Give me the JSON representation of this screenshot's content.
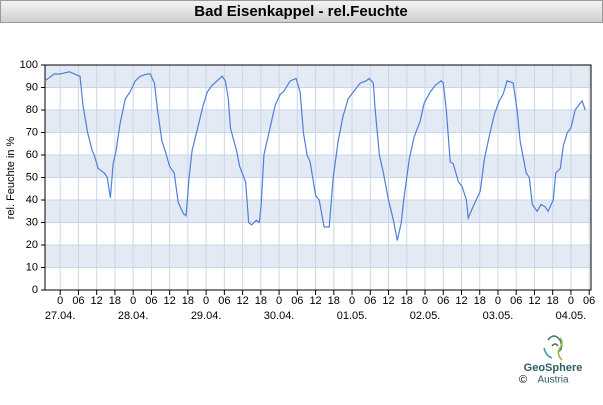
{
  "chart_data": {
    "type": "line",
    "title": "Bad Eisenkappel - rel.Feuchte",
    "ylabel": "rel. Feuchte in %",
    "x": [
      -5,
      -2,
      0,
      3,
      6.5,
      7.5,
      9,
      10.5,
      11.2,
      12.5,
      14.5,
      15.5,
      16.5,
      17.4,
      18.4,
      19.7,
      21.4,
      23,
      24.7,
      26.3,
      28.6,
      29.6,
      31,
      32,
      33.5,
      34.5,
      36,
      37.5,
      38.8,
      40.5,
      41.4,
      42.4,
      43.4,
      45.4,
      47,
      48.4,
      50,
      51.6,
      53.3,
      54.3,
      55.3,
      56,
      58,
      59,
      61,
      62,
      63,
      64.5,
      65.5,
      66.1,
      67,
      69,
      70.7,
      72.4,
      73.4,
      75.7,
      77.6,
      78.9,
      80,
      81.2,
      82.2,
      84,
      85.2,
      86.8,
      88.5,
      89.8,
      91.4,
      93,
      94.7,
      96.4,
      98.7,
      100.7,
      101.6,
      103,
      103.6,
      105,
      106.3,
      108,
      109.6,
      110.9,
      112.2,
      113,
      114.8,
      116.4,
      118.4,
      119.7,
      121.7,
      123.4,
      125.3,
      126,
      127,
      128.3,
      129.3,
      131,
      132.2,
      133.6,
      134.2,
      135.5,
      136.8,
      138.2,
      139.5,
      141.4,
      142.8,
      144.4,
      145.7,
      147,
      149,
      150.3,
      151.3,
      153.3,
      154.3,
      155.3,
      156.9,
      158.2,
      159.5,
      160.5,
      162.2,
      163,
      164.5,
      165.5,
      166.8,
      168,
      169.4,
      171,
      171.7,
      172.7
    ],
    "values": [
      93,
      96,
      96,
      97,
      95,
      82,
      70,
      62,
      60,
      54,
      52,
      50,
      41,
      56,
      62,
      74,
      85,
      88,
      93,
      95,
      96,
      96,
      92,
      80,
      66,
      62,
      55,
      52,
      39,
      34,
      33,
      50,
      62,
      73,
      82,
      88,
      91,
      93,
      95,
      93,
      85,
      72,
      62,
      55,
      48,
      30,
      29,
      31,
      30,
      38,
      60,
      72,
      82,
      87,
      88,
      93,
      94,
      88,
      70,
      60,
      57,
      42,
      40,
      28,
      28,
      50,
      66,
      77,
      85,
      88,
      92,
      93,
      94,
      92,
      80,
      60,
      52,
      40,
      31,
      22,
      30,
      40,
      58,
      68,
      75,
      83,
      88,
      91,
      93,
      92,
      80,
      57,
      56,
      48,
      46,
      40,
      32,
      36,
      40,
      44,
      58,
      70,
      78,
      84,
      87,
      93,
      92,
      80,
      66,
      52,
      50,
      38,
      35,
      38,
      37,
      35,
      40,
      52,
      54,
      64,
      70,
      72,
      80,
      83,
      84,
      80
    ],
    "color": "#4f7fd6",
    "xlim": [
      -5,
      174.6
    ],
    "ylim": [
      0,
      100
    ],
    "yticks": [
      0,
      10,
      20,
      30,
      40,
      50,
      60,
      70,
      80,
      90,
      100
    ],
    "xticks": [
      {
        "value": 0,
        "label": "0"
      },
      {
        "value": 6,
        "label": "06"
      },
      {
        "value": 12,
        "label": "12"
      },
      {
        "value": 18,
        "label": "18"
      },
      {
        "value": 24,
        "label": "0"
      },
      {
        "value": 30,
        "label": "06"
      },
      {
        "value": 36,
        "label": "12"
      },
      {
        "value": 42,
        "label": "18"
      },
      {
        "value": 48,
        "label": "0"
      },
      {
        "value": 54,
        "label": "06"
      },
      {
        "value": 60,
        "label": "12"
      },
      {
        "value": 66,
        "label": "18"
      },
      {
        "value": 72,
        "label": "0"
      },
      {
        "value": 78,
        "label": "06"
      },
      {
        "value": 84,
        "label": "12"
      },
      {
        "value": 90,
        "label": "18"
      },
      {
        "value": 96,
        "label": "0"
      },
      {
        "value": 102,
        "label": "06"
      },
      {
        "value": 108,
        "label": "12"
      },
      {
        "value": 114,
        "label": "18"
      },
      {
        "value": 120,
        "label": "0"
      },
      {
        "value": 126,
        "label": "06"
      },
      {
        "value": 132,
        "label": "12"
      },
      {
        "value": 138,
        "label": "18"
      },
      {
        "value": 144,
        "label": "0"
      },
      {
        "value": 150,
        "label": "06"
      },
      {
        "value": 156,
        "label": "12"
      },
      {
        "value": 162,
        "label": "18"
      },
      {
        "value": 168,
        "label": "0"
      },
      {
        "value": 174,
        "label": "06"
      }
    ],
    "date_ticks": [
      {
        "value": 0,
        "label": "27.04."
      },
      {
        "value": 24,
        "label": "28.04."
      },
      {
        "value": 48,
        "label": "29.04."
      },
      {
        "value": 72,
        "label": "30.04."
      },
      {
        "value": 96,
        "label": "01.05."
      },
      {
        "value": 120,
        "label": "02.05."
      },
      {
        "value": 144,
        "label": "03.05."
      },
      {
        "value": 168,
        "label": "04.05."
      }
    ],
    "grid": true
  },
  "logo": {
    "name": "GeoSphere",
    "sub": "Austria",
    "copyright": "©"
  }
}
